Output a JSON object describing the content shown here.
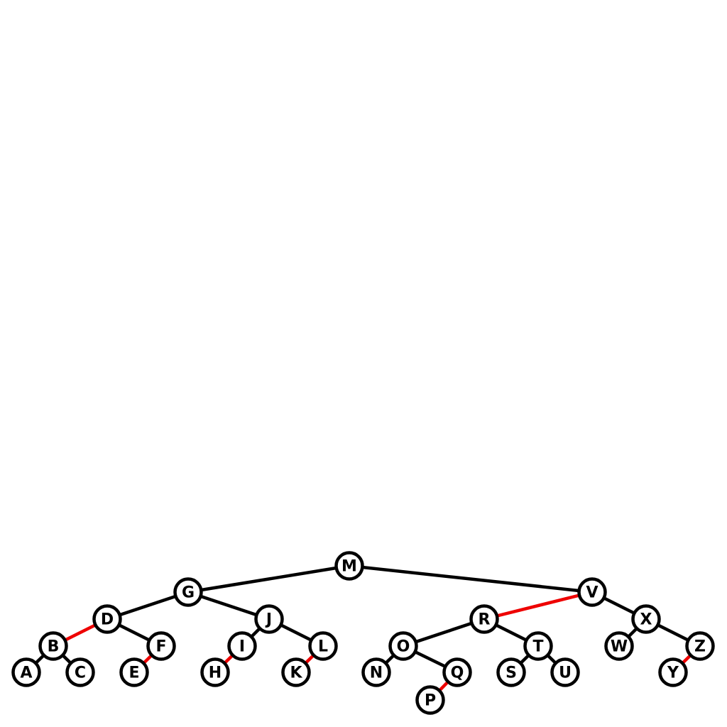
{
  "diagram": {
    "type": "red-black-tree",
    "colors": {
      "black_edge": "#000000",
      "red_edge": "#ee0000",
      "node_fill": "#ffffff",
      "node_stroke": "#000000"
    },
    "nodes": [
      {
        "id": "M",
        "label": "M"
      },
      {
        "id": "G",
        "label": "G"
      },
      {
        "id": "V",
        "label": "V"
      },
      {
        "id": "D",
        "label": "D"
      },
      {
        "id": "J",
        "label": "J"
      },
      {
        "id": "R",
        "label": "R"
      },
      {
        "id": "X",
        "label": "X"
      },
      {
        "id": "B",
        "label": "B"
      },
      {
        "id": "F",
        "label": "F"
      },
      {
        "id": "I",
        "label": "I"
      },
      {
        "id": "L",
        "label": "L"
      },
      {
        "id": "O",
        "label": "O"
      },
      {
        "id": "T",
        "label": "T"
      },
      {
        "id": "W",
        "label": "W"
      },
      {
        "id": "Z",
        "label": "Z"
      },
      {
        "id": "A",
        "label": "A"
      },
      {
        "id": "C",
        "label": "C"
      },
      {
        "id": "E",
        "label": "E"
      },
      {
        "id": "H",
        "label": "H"
      },
      {
        "id": "K",
        "label": "K"
      },
      {
        "id": "N",
        "label": "N"
      },
      {
        "id": "Q",
        "label": "Q"
      },
      {
        "id": "S",
        "label": "S"
      },
      {
        "id": "U",
        "label": "U"
      },
      {
        "id": "Y",
        "label": "Y"
      },
      {
        "id": "P",
        "label": "P"
      }
    ],
    "edges": [
      {
        "from": "M",
        "to": "G",
        "color": "black"
      },
      {
        "from": "M",
        "to": "V",
        "color": "black"
      },
      {
        "from": "G",
        "to": "D",
        "color": "black"
      },
      {
        "from": "G",
        "to": "J",
        "color": "black"
      },
      {
        "from": "V",
        "to": "R",
        "color": "red"
      },
      {
        "from": "V",
        "to": "X",
        "color": "black"
      },
      {
        "from": "D",
        "to": "B",
        "color": "red"
      },
      {
        "from": "D",
        "to": "F",
        "color": "black"
      },
      {
        "from": "J",
        "to": "I",
        "color": "black"
      },
      {
        "from": "J",
        "to": "L",
        "color": "black"
      },
      {
        "from": "R",
        "to": "O",
        "color": "black"
      },
      {
        "from": "R",
        "to": "T",
        "color": "black"
      },
      {
        "from": "X",
        "to": "W",
        "color": "black"
      },
      {
        "from": "X",
        "to": "Z",
        "color": "black"
      },
      {
        "from": "B",
        "to": "A",
        "color": "black"
      },
      {
        "from": "B",
        "to": "C",
        "color": "black"
      },
      {
        "from": "F",
        "to": "E",
        "color": "red"
      },
      {
        "from": "I",
        "to": "H",
        "color": "red"
      },
      {
        "from": "L",
        "to": "K",
        "color": "red"
      },
      {
        "from": "O",
        "to": "N",
        "color": "black"
      },
      {
        "from": "O",
        "to": "Q",
        "color": "black"
      },
      {
        "from": "T",
        "to": "S",
        "color": "black"
      },
      {
        "from": "T",
        "to": "U",
        "color": "black"
      },
      {
        "from": "Z",
        "to": "Y",
        "color": "red"
      },
      {
        "from": "Q",
        "to": "P",
        "color": "red"
      }
    ]
  }
}
